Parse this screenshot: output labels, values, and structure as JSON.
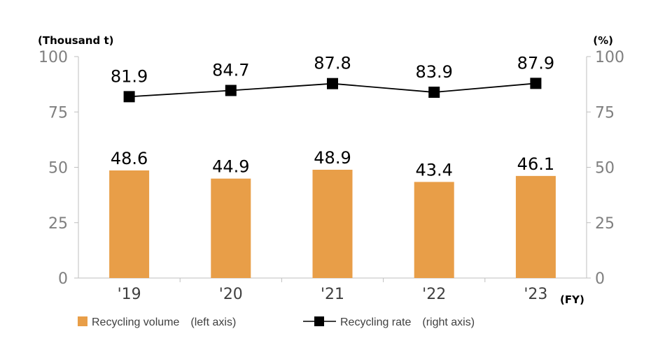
{
  "chart_data": {
    "type": "bar+line",
    "categories": [
      "'19",
      "'20",
      "'21",
      "'22",
      "'23"
    ],
    "x_unit": "(FY)",
    "left_axis": {
      "unit": "(Thousand t)",
      "ylim": [
        0,
        100
      ],
      "ticks": [
        0,
        25,
        50,
        75,
        100
      ]
    },
    "right_axis": {
      "unit": "(%)",
      "ylim": [
        0,
        100
      ],
      "ticks": [
        0,
        25,
        50,
        75,
        100
      ]
    },
    "series": [
      {
        "name": "Recycling volume　(left axis)",
        "kind": "bar",
        "axis": "left",
        "color": "#e89e48",
        "values": [
          48.6,
          44.9,
          48.9,
          43.4,
          46.1
        ],
        "labels": [
          "48.6",
          "44.9",
          "48.9",
          "43.4",
          "46.1"
        ]
      },
      {
        "name": "Recycling rate　(right axis)",
        "kind": "line",
        "axis": "right",
        "color": "#000000",
        "values": [
          81.9,
          84.7,
          87.8,
          83.9,
          87.9
        ],
        "labels": [
          "81.9",
          "84.7",
          "87.8",
          "83.9",
          "87.9"
        ]
      }
    ],
    "grid": false,
    "legend_position": "bottom"
  }
}
